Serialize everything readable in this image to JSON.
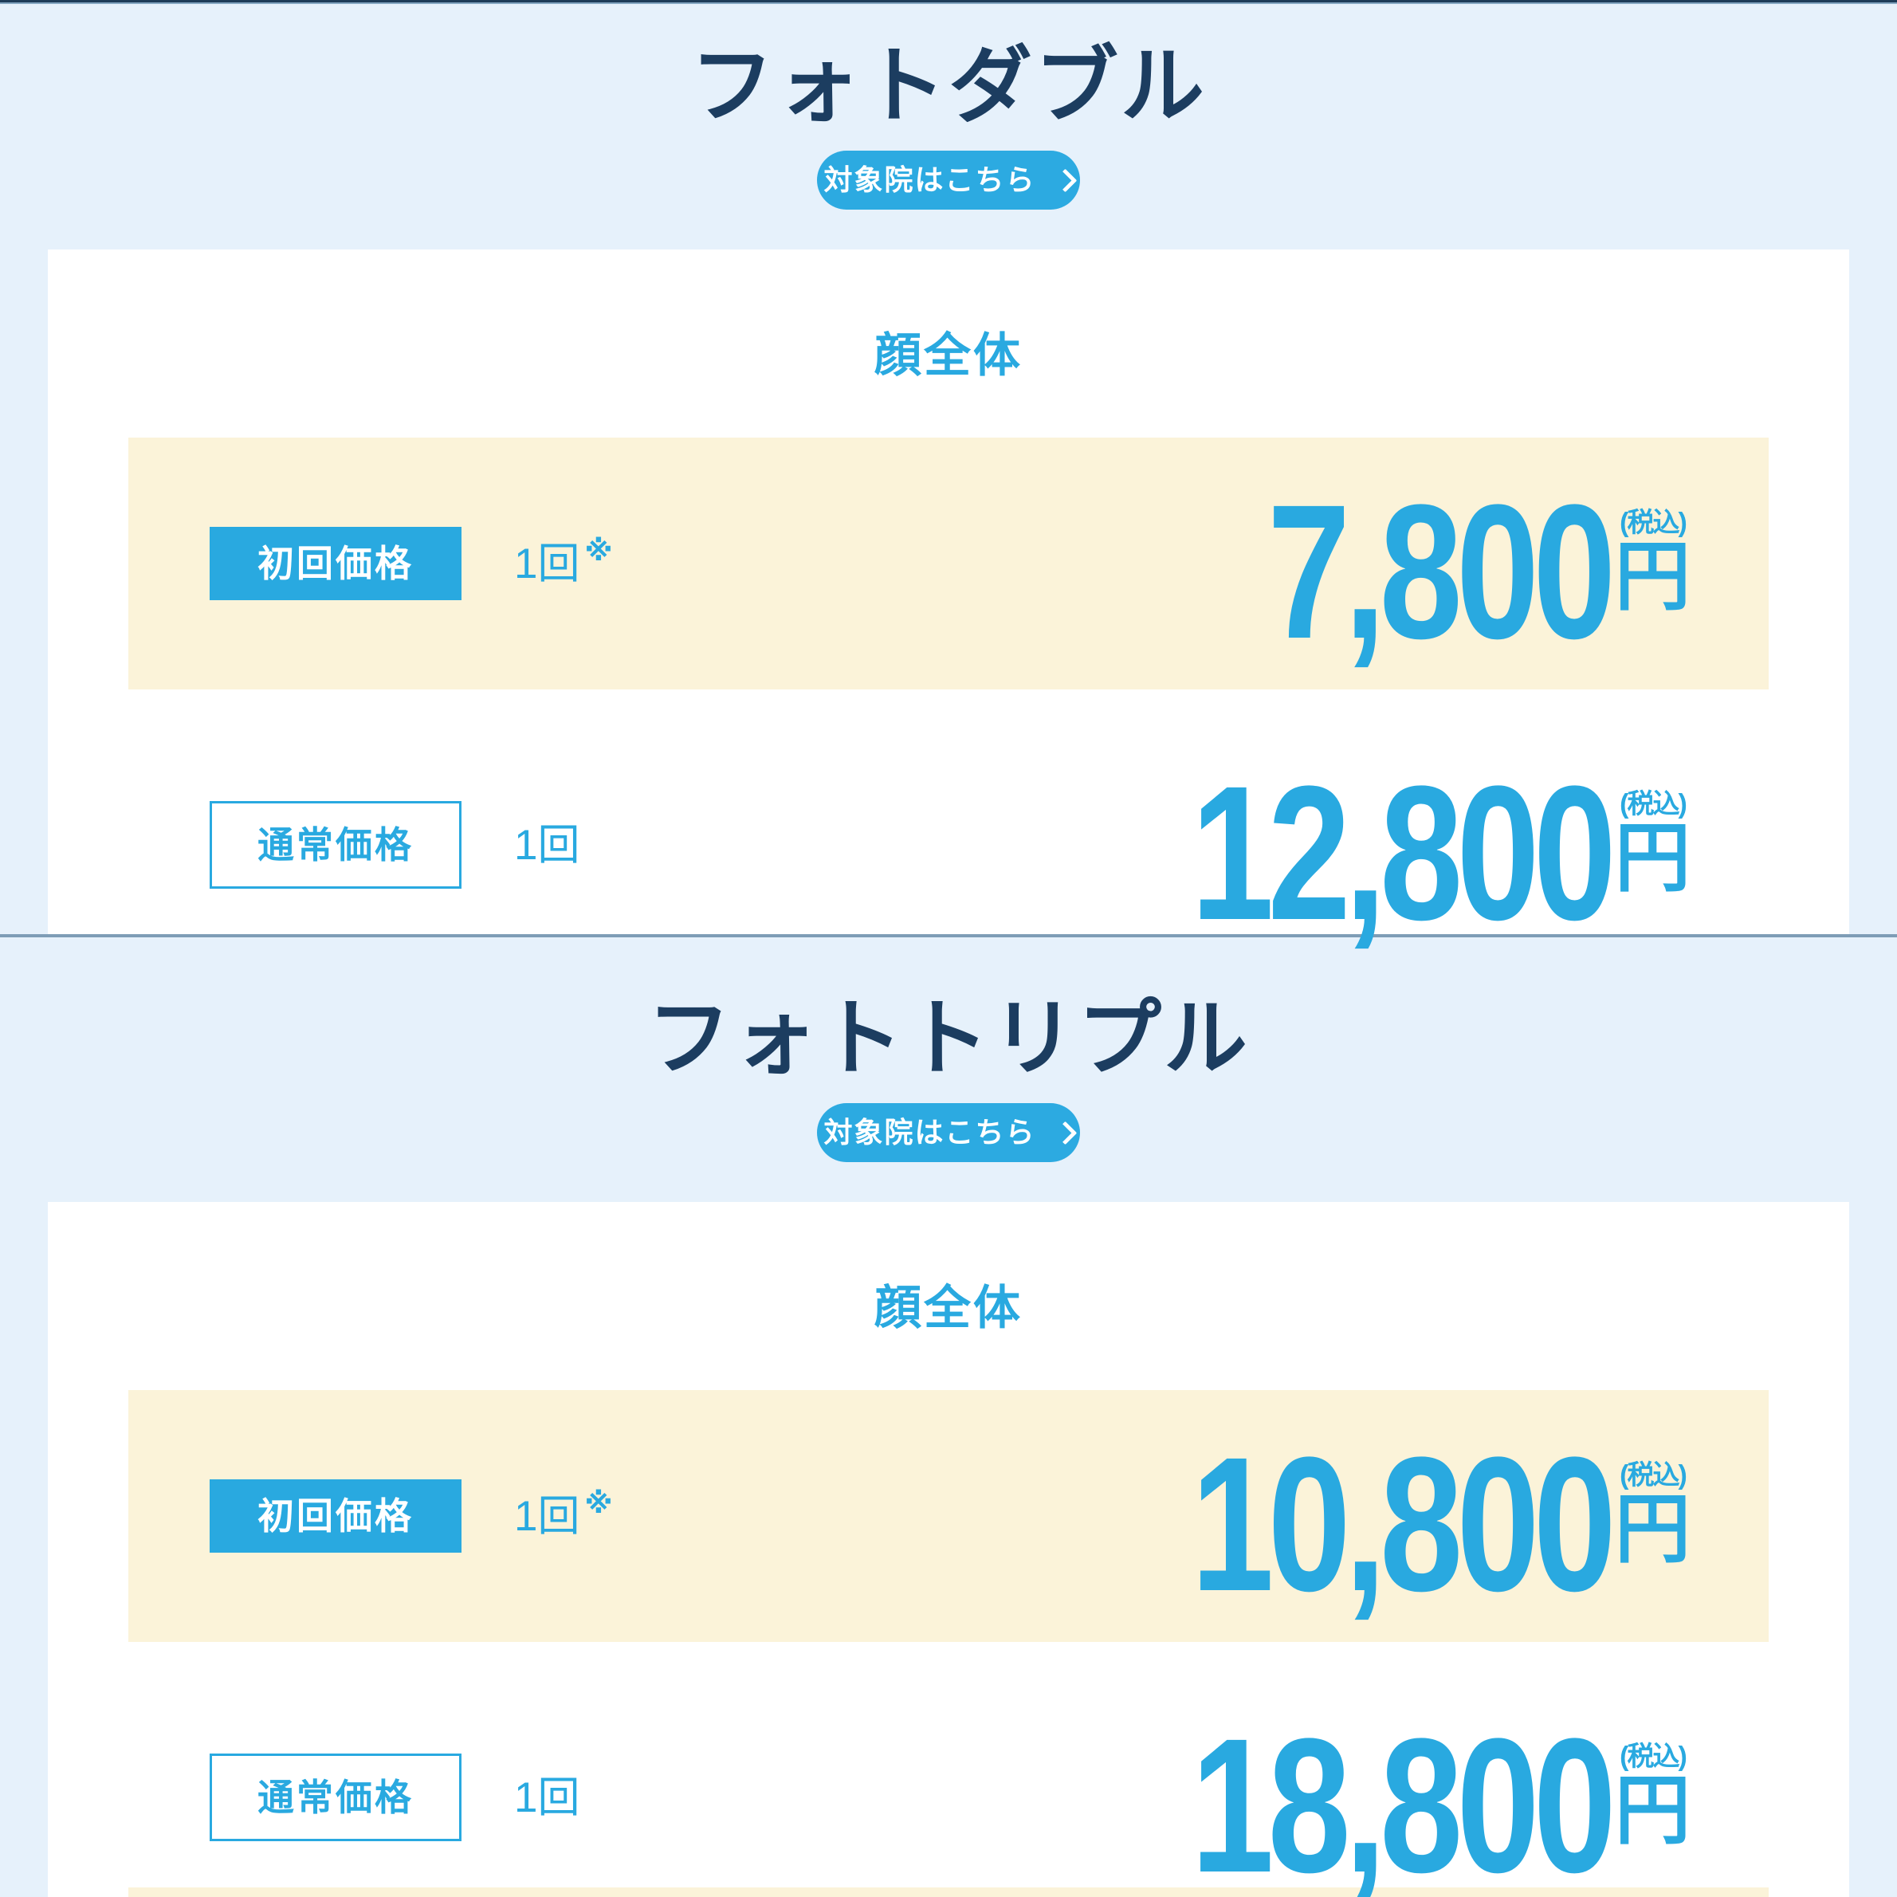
{
  "colors": {
    "accent_blue": "#29a9e0",
    "button_blue": "#2caae1",
    "title_navy": "#1c3d60",
    "section_background": "#e6f1fb",
    "highlight_row_background": "#fbf3d9",
    "divider_slate": "#7e9db6"
  },
  "sections": [
    {
      "title": "フォトダブル",
      "cta_label": "対象院はこちら",
      "card": {
        "area_heading": "顔全体",
        "first_row": {
          "label": "初回価格",
          "count": "1回",
          "count_note": "※",
          "price": "7,800",
          "currency": "円",
          "tax_note": "(税込)"
        },
        "regular_row": {
          "label": "通常価格",
          "count": "1回",
          "price": "12,800",
          "currency": "円",
          "tax_note": "(税込)"
        }
      }
    },
    {
      "title": "フォトトリプル",
      "cta_label": "対象院はこちら",
      "card": {
        "area_heading": "顔全体",
        "first_row": {
          "label": "初回価格",
          "count": "1回",
          "count_note": "※",
          "price": "10,800",
          "currency": "円",
          "tax_note": "(税込)"
        },
        "regular_row": {
          "label": "通常価格",
          "count": "1回",
          "price": "18,800",
          "currency": "円",
          "tax_note": "(税込)"
        }
      }
    }
  ]
}
